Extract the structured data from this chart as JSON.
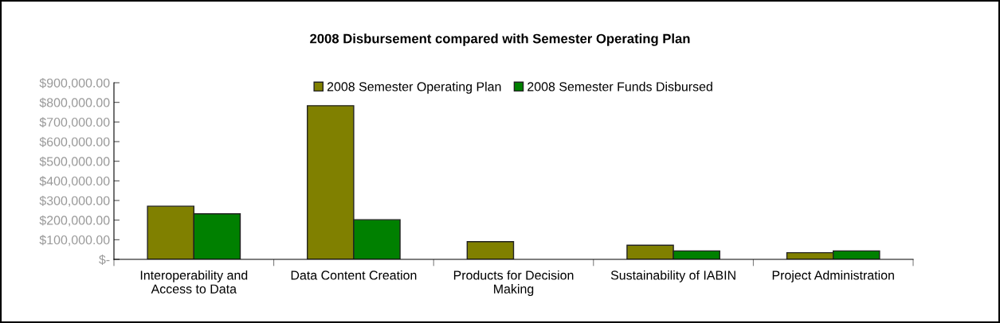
{
  "chart_data": {
    "type": "bar",
    "title": "2008 Disbursement compared with Semester Operating Plan",
    "categories": [
      "Interoperability and\nAccess to Data",
      "Data Content Creation",
      "Products for Decision\nMaking",
      "Sustainability of IABIN",
      "Project Administration"
    ],
    "series": [
      {
        "name": "2008 Semester Operating Plan",
        "color": "#808000",
        "values": [
          271000,
          783000,
          90000,
          72000,
          34000
        ]
      },
      {
        "name": "2008 Semester Funds Disbursed",
        "color": "#008000",
        "values": [
          232000,
          202000,
          null,
          43000,
          43000
        ]
      }
    ],
    "ylim": [
      0,
      900000
    ],
    "yticks": [
      {
        "value": 0,
        "label": "$-"
      },
      {
        "value": 100000,
        "label": "$100,000.00"
      },
      {
        "value": 200000,
        "label": "$200,000.00"
      },
      {
        "value": 300000,
        "label": "$300,000.00"
      },
      {
        "value": 400000,
        "label": "$400,000.00"
      },
      {
        "value": 500000,
        "label": "$500,000.00"
      },
      {
        "value": 600000,
        "label": "$600,000.00"
      },
      {
        "value": 700000,
        "label": "$700,000.00"
      },
      {
        "value": 800000,
        "label": "$800,000.00"
      },
      {
        "value": 900000,
        "label": "$900,000.00"
      }
    ],
    "grid": false,
    "legend": "top"
  }
}
